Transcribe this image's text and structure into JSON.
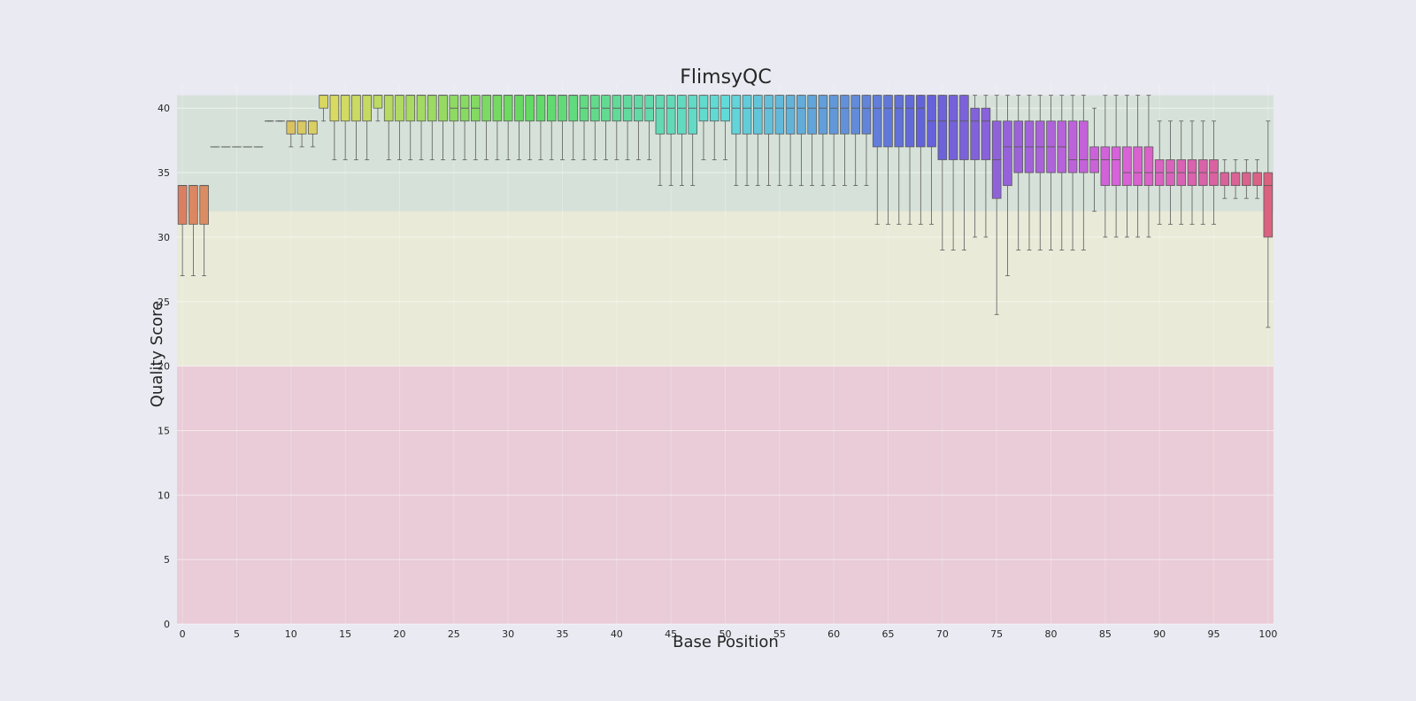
{
  "chart_data": {
    "type": "box",
    "title": "FlimsyQC",
    "xlabel": "Base Position",
    "ylabel": "Quality Score",
    "xlim": [
      -0.5,
      100.5
    ],
    "ylim": [
      0,
      42
    ],
    "xticks": [
      "0",
      "5",
      "10",
      "15",
      "20",
      "25",
      "30",
      "35",
      "40",
      "45",
      "50",
      "55",
      "60",
      "65",
      "70",
      "75",
      "80",
      "85",
      "90",
      "95",
      "100"
    ],
    "yticks": [
      "0",
      "5",
      "10",
      "15",
      "20",
      "25",
      "30",
      "35",
      "40"
    ],
    "grid": true,
    "legend": "none",
    "bands": [
      {
        "from": 0,
        "to": 20,
        "color": "#e8b8c4"
      },
      {
        "from": 20,
        "to": 32,
        "color": "#eaeac8"
      },
      {
        "from": 32,
        "to": 41,
        "color": "#c8dcc8"
      }
    ],
    "positions": [
      0,
      1,
      2,
      3,
      4,
      5,
      6,
      7,
      8,
      9,
      10,
      11,
      12,
      13,
      14,
      15,
      16,
      17,
      18,
      19,
      20,
      21,
      22,
      23,
      24,
      25,
      26,
      27,
      28,
      29,
      30,
      31,
      32,
      33,
      34,
      35,
      36,
      37,
      38,
      39,
      40,
      41,
      42,
      43,
      44,
      45,
      46,
      47,
      48,
      49,
      50,
      51,
      52,
      53,
      54,
      55,
      56,
      57,
      58,
      59,
      60,
      61,
      62,
      63,
      64,
      65,
      66,
      67,
      68,
      69,
      70,
      71,
      72,
      73,
      74,
      75,
      76,
      77,
      78,
      79,
      80,
      81,
      82,
      83,
      84,
      85,
      86,
      87,
      88,
      89,
      90,
      91,
      92,
      93,
      94,
      95,
      96,
      97,
      98,
      99,
      100
    ],
    "boxes": [
      [
        27,
        31,
        34,
        34,
        34
      ],
      [
        27,
        31,
        34,
        34,
        34
      ],
      [
        27,
        31,
        34,
        34,
        34
      ],
      [
        37,
        37,
        37,
        37,
        37
      ],
      [
        37,
        37,
        37,
        37,
        37
      ],
      [
        37,
        37,
        37,
        37,
        37
      ],
      [
        37,
        37,
        37,
        37,
        37
      ],
      [
        37,
        37,
        37,
        37,
        37
      ],
      [
        39,
        39,
        39,
        39,
        39
      ],
      [
        39,
        39,
        39,
        39,
        39
      ],
      [
        37,
        38,
        39,
        39,
        39
      ],
      [
        37,
        38,
        39,
        39,
        39
      ],
      [
        37,
        38,
        39,
        39,
        39
      ],
      [
        39,
        40,
        41,
        41,
        41
      ],
      [
        36,
        39,
        41,
        41,
        41
      ],
      [
        36,
        39,
        41,
        41,
        41
      ],
      [
        36,
        39,
        41,
        41,
        41
      ],
      [
        36,
        39,
        41,
        41,
        41
      ],
      [
        39,
        40,
        41,
        41,
        41
      ],
      [
        36,
        39,
        41,
        41,
        41
      ],
      [
        36,
        39,
        41,
        41,
        41
      ],
      [
        36,
        39,
        41,
        41,
        41
      ],
      [
        36,
        39,
        41,
        41,
        41
      ],
      [
        36,
        39,
        41,
        41,
        41
      ],
      [
        36,
        39,
        41,
        41,
        41
      ],
      [
        36,
        39,
        40,
        41,
        41
      ],
      [
        36,
        39,
        40,
        41,
        41
      ],
      [
        36,
        39,
        40,
        41,
        41
      ],
      [
        36,
        39,
        41,
        41,
        41
      ],
      [
        36,
        39,
        41,
        41,
        41
      ],
      [
        36,
        39,
        41,
        41,
        41
      ],
      [
        36,
        39,
        41,
        41,
        41
      ],
      [
        36,
        39,
        41,
        41,
        41
      ],
      [
        36,
        39,
        41,
        41,
        41
      ],
      [
        36,
        39,
        41,
        41,
        41
      ],
      [
        36,
        39,
        41,
        41,
        41
      ],
      [
        36,
        39,
        41,
        41,
        41
      ],
      [
        36,
        39,
        40,
        41,
        41
      ],
      [
        36,
        39,
        40,
        41,
        41
      ],
      [
        36,
        39,
        40,
        41,
        41
      ],
      [
        36,
        39,
        40,
        41,
        41
      ],
      [
        36,
        39,
        40,
        41,
        41
      ],
      [
        36,
        39,
        40,
        41,
        41
      ],
      [
        36,
        39,
        40,
        41,
        41
      ],
      [
        34,
        38,
        40,
        41,
        41
      ],
      [
        34,
        38,
        40,
        41,
        41
      ],
      [
        34,
        38,
        40,
        41,
        41
      ],
      [
        34,
        38,
        40,
        41,
        41
      ],
      [
        36,
        39,
        40,
        41,
        41
      ],
      [
        36,
        39,
        40,
        41,
        41
      ],
      [
        36,
        39,
        40,
        41,
        41
      ],
      [
        34,
        38,
        40,
        41,
        41
      ],
      [
        34,
        38,
        40,
        41,
        41
      ],
      [
        34,
        38,
        40,
        41,
        41
      ],
      [
        34,
        38,
        40,
        41,
        41
      ],
      [
        34,
        38,
        40,
        41,
        41
      ],
      [
        34,
        38,
        40,
        41,
        41
      ],
      [
        34,
        38,
        40,
        41,
        41
      ],
      [
        34,
        38,
        40,
        41,
        41
      ],
      [
        34,
        38,
        40,
        41,
        41
      ],
      [
        34,
        38,
        40,
        41,
        41
      ],
      [
        34,
        38,
        40,
        41,
        41
      ],
      [
        34,
        38,
        40,
        41,
        41
      ],
      [
        34,
        38,
        40,
        41,
        41
      ],
      [
        31,
        37,
        40,
        41,
        41
      ],
      [
        31,
        37,
        40,
        41,
        41
      ],
      [
        31,
        37,
        40,
        41,
        41
      ],
      [
        31,
        37,
        40,
        41,
        41
      ],
      [
        31,
        37,
        40,
        41,
        41
      ],
      [
        31,
        37,
        39,
        41,
        41
      ],
      [
        29,
        36,
        39,
        41,
        41
      ],
      [
        29,
        36,
        39,
        41,
        41
      ],
      [
        29,
        36,
        39,
        41,
        41
      ],
      [
        30,
        36,
        39,
        40,
        41
      ],
      [
        30,
        36,
        39,
        40,
        41
      ],
      [
        24,
        33,
        36,
        39,
        41
      ],
      [
        27,
        34,
        37,
        39,
        41
      ],
      [
        29,
        35,
        37,
        39,
        41
      ],
      [
        29,
        35,
        37,
        39,
        41
      ],
      [
        29,
        35,
        37,
        39,
        41
      ],
      [
        29,
        35,
        37,
        39,
        41
      ],
      [
        29,
        35,
        37,
        39,
        41
      ],
      [
        29,
        35,
        36,
        39,
        41
      ],
      [
        29,
        35,
        36,
        39,
        41
      ],
      [
        32,
        35,
        36,
        37,
        40
      ],
      [
        30,
        34,
        36,
        37,
        41
      ],
      [
        30,
        34,
        36,
        37,
        41
      ],
      [
        30,
        34,
        35,
        37,
        41
      ],
      [
        30,
        34,
        35,
        37,
        41
      ],
      [
        30,
        34,
        35,
        37,
        41
      ],
      [
        31,
        34,
        35,
        36,
        39
      ],
      [
        31,
        34,
        35,
        36,
        39
      ],
      [
        31,
        34,
        35,
        36,
        39
      ],
      [
        31,
        34,
        35,
        36,
        39
      ],
      [
        31,
        34,
        35,
        36,
        39
      ],
      [
        31,
        34,
        35,
        36,
        39
      ],
      [
        33,
        34,
        35,
        35,
        36
      ],
      [
        33,
        34,
        35,
        35,
        36
      ],
      [
        33,
        34,
        35,
        35,
        36
      ],
      [
        33,
        34,
        35,
        35,
        36
      ],
      [
        23,
        30,
        34,
        35,
        39
      ]
    ]
  }
}
